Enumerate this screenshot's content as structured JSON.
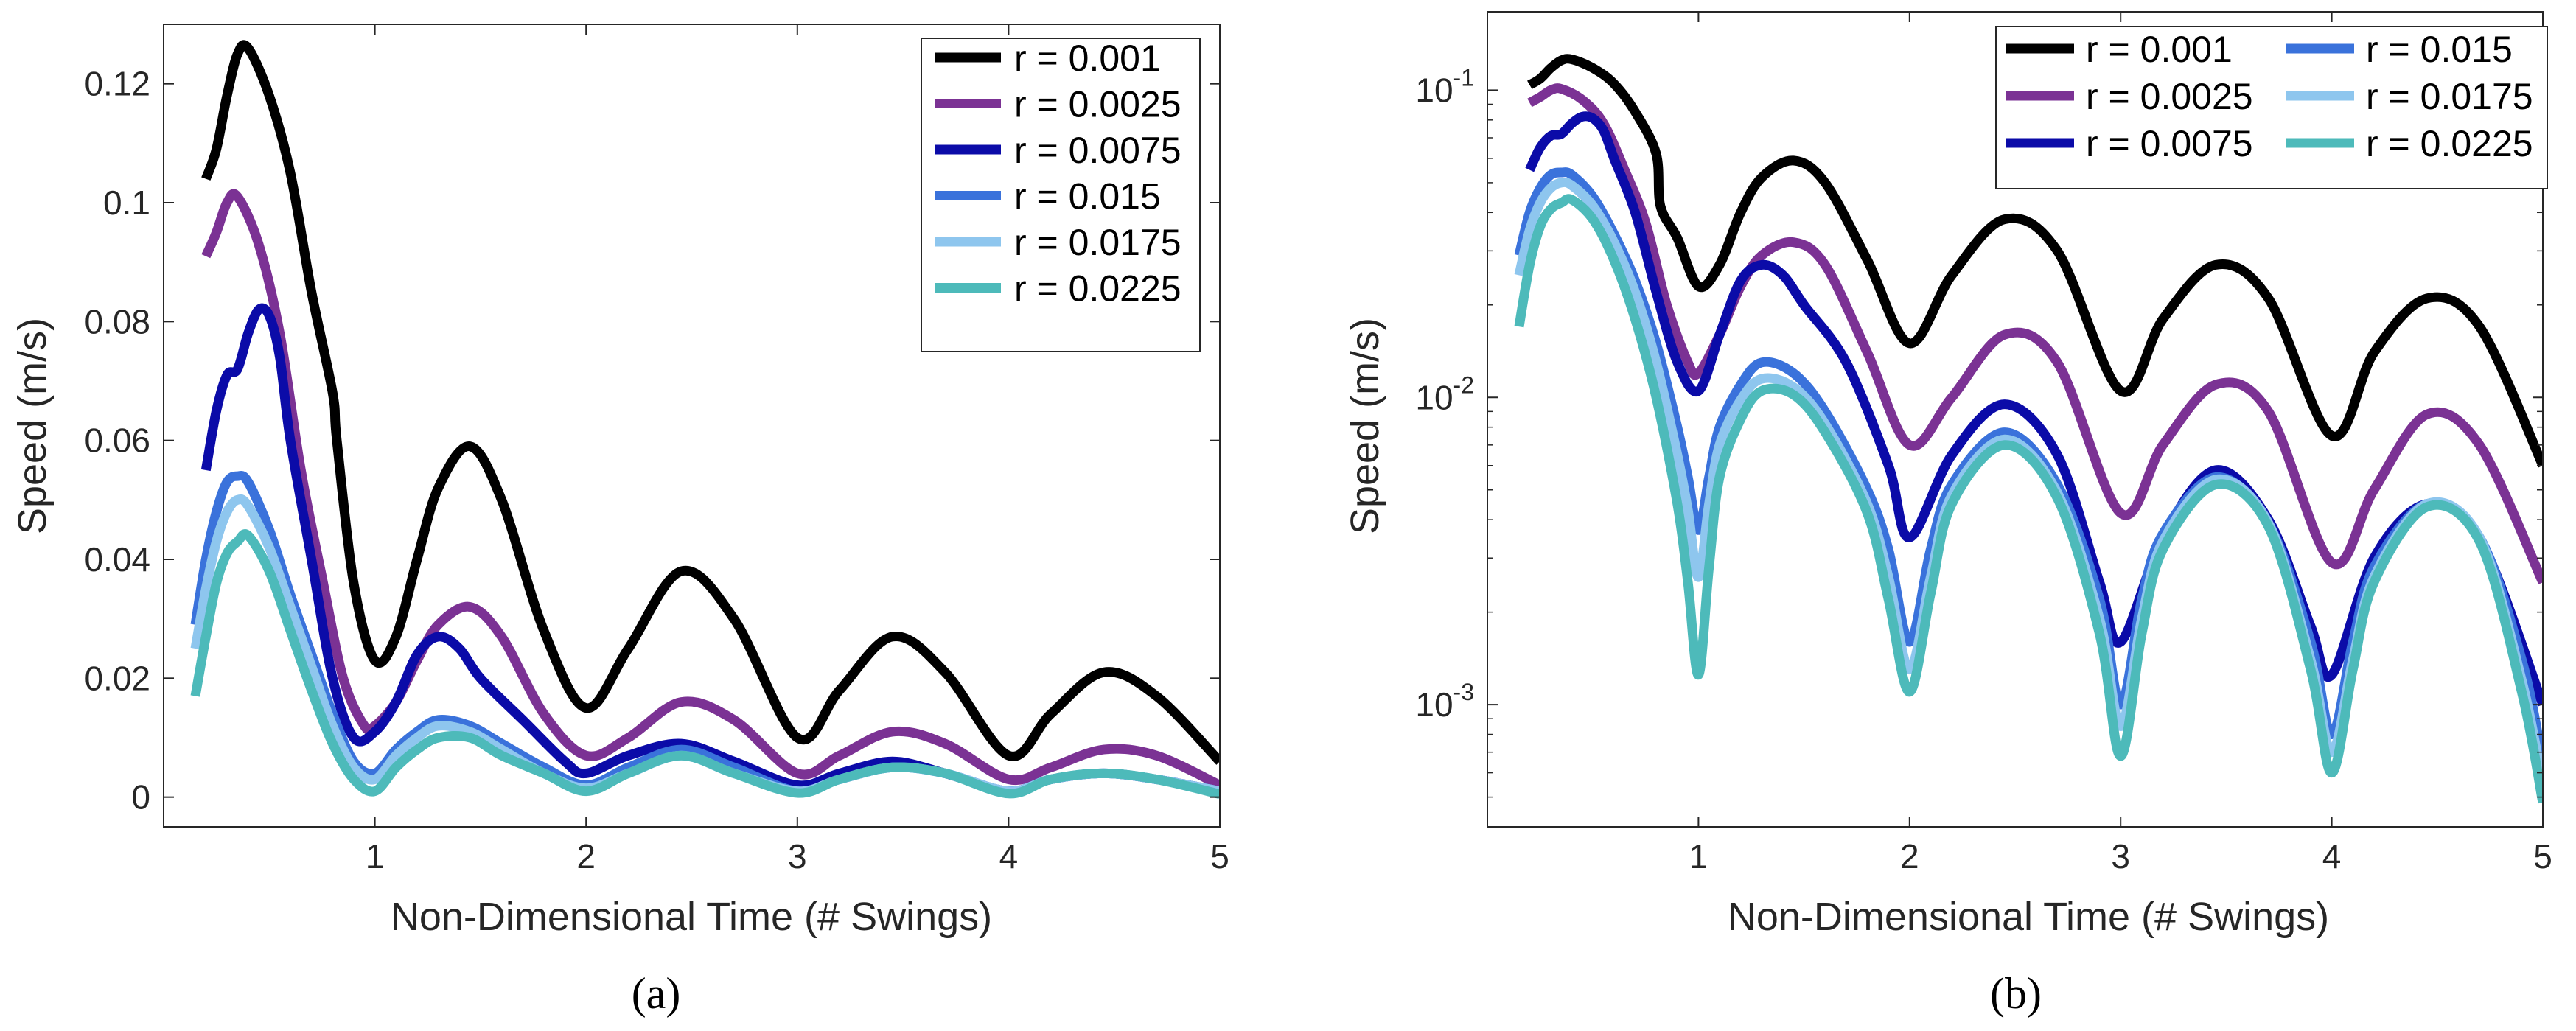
{
  "colors": {
    "r_0_001": "#000000",
    "r_0_0025": "#7B3294",
    "r_0_0075": "#0B0BA8",
    "r_0_015": "#3A72DB",
    "r_0_0175": "#8EC6EE",
    "r_0_0225": "#4DBABA"
  },
  "chart_data": [
    {
      "type": "line",
      "panel": "(a)",
      "caption": "(a)",
      "xlabel": "Non-Dimensional Time (# Swings)",
      "ylabel": "Speed (m/s)",
      "xlim": [
        0.0,
        5.0
      ],
      "ylim": [
        -0.005,
        0.13
      ],
      "yscale": "linear",
      "xticks": [
        1,
        2,
        3,
        4,
        5
      ],
      "xtick_labels": [
        "1",
        "2",
        "3",
        "4",
        "5"
      ],
      "yticks": [
        0,
        0.02,
        0.04,
        0.06,
        0.08,
        0.1,
        0.12
      ],
      "ytick_labels": [
        "0",
        "0.02",
        "0.04",
        "0.06",
        "0.08",
        "0.1",
        "0.12"
      ],
      "legend_position": "top-right",
      "legend_columns": 1,
      "series": [
        {
          "name": "r = 0.001",
          "color_key": "r_0_001",
          "x": [
            0.2,
            0.25,
            0.3,
            0.35,
            0.4,
            0.5,
            0.6,
            0.7,
            0.8,
            0.82,
            0.9,
            1.0,
            1.1,
            1.2,
            1.3,
            1.45,
            1.6,
            1.8,
            2.0,
            2.2,
            2.45,
            2.7,
            3.0,
            3.2,
            3.45,
            3.7,
            4.0,
            4.2,
            4.45,
            4.7,
            5.0
          ],
          "y": [
            0.104,
            0.109,
            0.118,
            0.125,
            0.126,
            0.118,
            0.105,
            0.085,
            0.068,
            0.06,
            0.036,
            0.023,
            0.027,
            0.04,
            0.052,
            0.059,
            0.05,
            0.028,
            0.015,
            0.025,
            0.038,
            0.03,
            0.01,
            0.018,
            0.027,
            0.021,
            0.007,
            0.014,
            0.021,
            0.017,
            0.006
          ]
        },
        {
          "name": "r = 0.0025",
          "color_key": "r_0_0025",
          "x": [
            0.2,
            0.25,
            0.3,
            0.35,
            0.45,
            0.55,
            0.65,
            0.75,
            0.85,
            0.95,
            1.0,
            1.1,
            1.2,
            1.3,
            1.45,
            1.6,
            1.8,
            2.0,
            2.2,
            2.45,
            2.7,
            3.0,
            3.2,
            3.45,
            3.7,
            4.0,
            4.2,
            4.45,
            4.7,
            5.0
          ],
          "y": [
            0.091,
            0.095,
            0.1,
            0.101,
            0.093,
            0.078,
            0.055,
            0.037,
            0.02,
            0.012,
            0.012,
            0.016,
            0.023,
            0.029,
            0.032,
            0.027,
            0.014,
            0.007,
            0.01,
            0.016,
            0.013,
            0.004,
            0.007,
            0.011,
            0.009,
            0.003,
            0.005,
            0.008,
            0.007,
            0.002
          ]
        },
        {
          "name": "r = 0.0075",
          "color_key": "r_0_0075",
          "x": [
            0.2,
            0.25,
            0.3,
            0.35,
            0.4,
            0.45,
            0.5,
            0.55,
            0.6,
            0.7,
            0.8,
            0.9,
            1.0,
            1.1,
            1.2,
            1.3,
            1.4,
            1.5,
            1.7,
            1.9,
            2.0,
            2.2,
            2.45,
            2.7,
            3.0,
            3.2,
            3.45,
            3.7,
            4.0,
            4.2,
            4.45,
            4.7,
            5.0
          ],
          "y": [
            0.055,
            0.065,
            0.071,
            0.072,
            0.078,
            0.082,
            0.081,
            0.074,
            0.06,
            0.04,
            0.02,
            0.01,
            0.011,
            0.016,
            0.024,
            0.027,
            0.025,
            0.02,
            0.013,
            0.006,
            0.004,
            0.007,
            0.009,
            0.006,
            0.002,
            0.004,
            0.006,
            0.004,
            0.001,
            0.003,
            0.004,
            0.003,
            0.001
          ]
        },
        {
          "name": "r = 0.015",
          "color_key": "r_0_015",
          "x": [
            0.15,
            0.2,
            0.25,
            0.3,
            0.35,
            0.4,
            0.5,
            0.6,
            0.7,
            0.8,
            0.9,
            1.0,
            1.1,
            1.2,
            1.3,
            1.45,
            1.6,
            1.8,
            2.0,
            2.2,
            2.45,
            2.7,
            3.0,
            3.2,
            3.45,
            3.7,
            4.0,
            4.2,
            4.45,
            4.7,
            5.0
          ],
          "y": [
            0.029,
            0.04,
            0.048,
            0.053,
            0.054,
            0.053,
            0.045,
            0.034,
            0.024,
            0.014,
            0.006,
            0.004,
            0.008,
            0.011,
            0.013,
            0.012,
            0.009,
            0.005,
            0.002,
            0.005,
            0.008,
            0.005,
            0.001,
            0.003,
            0.005,
            0.004,
            0.001,
            0.003,
            0.004,
            0.003,
            0.001
          ]
        },
        {
          "name": "r = 0.0175",
          "color_key": "r_0_0175",
          "x": [
            0.15,
            0.2,
            0.25,
            0.3,
            0.35,
            0.4,
            0.5,
            0.6,
            0.7,
            0.8,
            0.9,
            1.0,
            1.1,
            1.2,
            1.3,
            1.45,
            1.6,
            1.8,
            2.0,
            2.2,
            2.45,
            2.7,
            3.0,
            3.2,
            3.45,
            3.7,
            4.0,
            4.2,
            4.45,
            4.7,
            5.0
          ],
          "y": [
            0.025,
            0.035,
            0.043,
            0.048,
            0.05,
            0.049,
            0.042,
            0.032,
            0.022,
            0.012,
            0.005,
            0.003,
            0.007,
            0.01,
            0.012,
            0.011,
            0.008,
            0.004,
            0.0015,
            0.004,
            0.007,
            0.004,
            0.001,
            0.003,
            0.005,
            0.004,
            0.001,
            0.003,
            0.004,
            0.003,
            0.001
          ]
        },
        {
          "name": "r = 0.0225",
          "color_key": "r_0_0225",
          "x": [
            0.15,
            0.2,
            0.25,
            0.3,
            0.35,
            0.4,
            0.5,
            0.6,
            0.7,
            0.8,
            0.9,
            1.0,
            1.1,
            1.2,
            1.3,
            1.45,
            1.6,
            1.8,
            2.0,
            2.2,
            2.45,
            2.7,
            3.0,
            3.2,
            3.45,
            3.7,
            4.0,
            4.2,
            4.45,
            4.7,
            5.0
          ],
          "y": [
            0.017,
            0.027,
            0.036,
            0.041,
            0.043,
            0.044,
            0.038,
            0.028,
            0.018,
            0.009,
            0.003,
            0.001,
            0.005,
            0.008,
            0.01,
            0.01,
            0.007,
            0.004,
            0.001,
            0.004,
            0.007,
            0.004,
            0.0007,
            0.003,
            0.005,
            0.004,
            0.0006,
            0.003,
            0.004,
            0.003,
            0.0005
          ]
        }
      ]
    },
    {
      "type": "line",
      "panel": "(b)",
      "caption": "(b)",
      "xlabel": "Non-Dimensional Time (# Swings)",
      "ylabel": "Speed (m/s)",
      "xlim": [
        0.0,
        5.0
      ],
      "ylim": [
        0.0004,
        0.18
      ],
      "yscale": "log",
      "xticks": [
        1,
        2,
        3,
        4,
        5
      ],
      "xtick_labels": [
        "1",
        "2",
        "3",
        "4",
        "5"
      ],
      "yticks": [
        0.001,
        0.01,
        0.1
      ],
      "ytick_bases": [
        "10",
        "10",
        "10"
      ],
      "ytick_exponents": [
        "-3",
        "-2",
        "-1"
      ],
      "legend_position": "top-right",
      "legend_columns": 2,
      "series": [
        {
          "name": "r = 0.001",
          "color_key": "r_0_001",
          "x": [
            0.2,
            0.25,
            0.3,
            0.35,
            0.4,
            0.5,
            0.6,
            0.7,
            0.8,
            0.82,
            0.9,
            1.0,
            1.1,
            1.2,
            1.3,
            1.45,
            1.6,
            1.8,
            2.0,
            2.2,
            2.45,
            2.7,
            3.0,
            3.2,
            3.45,
            3.7,
            4.0,
            4.2,
            4.45,
            4.7,
            5.0
          ],
          "y": [
            0.104,
            0.109,
            0.118,
            0.125,
            0.126,
            0.118,
            0.105,
            0.085,
            0.062,
            0.042,
            0.033,
            0.023,
            0.027,
            0.04,
            0.052,
            0.059,
            0.05,
            0.028,
            0.015,
            0.025,
            0.038,
            0.03,
            0.0105,
            0.018,
            0.027,
            0.021,
            0.0075,
            0.014,
            0.021,
            0.017,
            0.006
          ]
        },
        {
          "name": "r = 0.0025",
          "color_key": "r_0_0025",
          "x": [
            0.2,
            0.25,
            0.3,
            0.35,
            0.45,
            0.55,
            0.65,
            0.75,
            0.85,
            0.95,
            1.0,
            1.1,
            1.2,
            1.3,
            1.45,
            1.6,
            1.8,
            2.0,
            2.2,
            2.45,
            2.7,
            3.0,
            3.2,
            3.45,
            3.7,
            4.0,
            4.2,
            4.45,
            4.7,
            5.0
          ],
          "y": [
            0.091,
            0.095,
            0.1,
            0.101,
            0.093,
            0.078,
            0.055,
            0.037,
            0.02,
            0.013,
            0.012,
            0.016,
            0.023,
            0.029,
            0.032,
            0.027,
            0.014,
            0.007,
            0.01,
            0.016,
            0.013,
            0.0042,
            0.007,
            0.011,
            0.009,
            0.0029,
            0.005,
            0.0088,
            0.007,
            0.0025
          ]
        },
        {
          "name": "r = 0.0075",
          "color_key": "r_0_0075",
          "x": [
            0.2,
            0.25,
            0.3,
            0.35,
            0.4,
            0.45,
            0.5,
            0.55,
            0.6,
            0.7,
            0.8,
            0.9,
            1.0,
            1.1,
            1.2,
            1.3,
            1.4,
            1.5,
            1.7,
            1.9,
            2.0,
            2.2,
            2.45,
            2.7,
            2.9,
            3.0,
            3.2,
            3.45,
            3.7,
            3.9,
            4.0,
            4.2,
            4.45,
            4.7,
            5.0
          ],
          "y": [
            0.055,
            0.065,
            0.071,
            0.072,
            0.078,
            0.082,
            0.081,
            0.074,
            0.06,
            0.04,
            0.022,
            0.013,
            0.0105,
            0.016,
            0.024,
            0.027,
            0.025,
            0.02,
            0.013,
            0.006,
            0.0035,
            0.0065,
            0.0095,
            0.0065,
            0.0025,
            0.0016,
            0.0035,
            0.0058,
            0.004,
            0.0018,
            0.00125,
            0.003,
            0.0045,
            0.0035,
            0.001
          ]
        },
        {
          "name": "r = 0.015",
          "color_key": "r_0_015",
          "x": [
            0.15,
            0.2,
            0.25,
            0.3,
            0.35,
            0.4,
            0.5,
            0.6,
            0.7,
            0.8,
            0.9,
            0.95,
            1.0,
            1.05,
            1.1,
            1.2,
            1.3,
            1.45,
            1.6,
            1.8,
            1.9,
            2.0,
            2.1,
            2.2,
            2.45,
            2.7,
            2.9,
            3.0,
            3.1,
            3.2,
            3.45,
            3.7,
            3.9,
            4.0,
            4.1,
            4.2,
            4.45,
            4.7,
            4.9,
            5.0
          ],
          "y": [
            0.029,
            0.04,
            0.048,
            0.053,
            0.054,
            0.053,
            0.045,
            0.034,
            0.024,
            0.015,
            0.008,
            0.0055,
            0.0037,
            0.0055,
            0.008,
            0.011,
            0.013,
            0.012,
            0.009,
            0.005,
            0.0032,
            0.0016,
            0.0032,
            0.0052,
            0.0077,
            0.0052,
            0.0022,
            0.001,
            0.0022,
            0.0036,
            0.0055,
            0.0039,
            0.0016,
            0.0008,
            0.0016,
            0.0028,
            0.0045,
            0.0035,
            0.0014,
            0.00065
          ]
        },
        {
          "name": "r = 0.0175",
          "color_key": "r_0_0175",
          "x": [
            0.15,
            0.2,
            0.25,
            0.3,
            0.35,
            0.4,
            0.5,
            0.6,
            0.7,
            0.8,
            0.9,
            0.95,
            1.0,
            1.05,
            1.1,
            1.2,
            1.3,
            1.45,
            1.6,
            1.8,
            1.9,
            2.0,
            2.1,
            2.2,
            2.45,
            2.7,
            2.9,
            3.0,
            3.1,
            3.2,
            3.45,
            3.7,
            3.9,
            4.0,
            4.1,
            4.2,
            4.45,
            4.7,
            4.9,
            5.0
          ],
          "y": [
            0.025,
            0.035,
            0.043,
            0.048,
            0.05,
            0.049,
            0.042,
            0.032,
            0.022,
            0.013,
            0.0065,
            0.0043,
            0.0026,
            0.0045,
            0.007,
            0.0098,
            0.0115,
            0.0108,
            0.0082,
            0.0045,
            0.0026,
            0.0013,
            0.0026,
            0.0048,
            0.0073,
            0.0049,
            0.0019,
            0.00085,
            0.0019,
            0.0034,
            0.0054,
            0.0039,
            0.0014,
            0.0007,
            0.0014,
            0.0026,
            0.0045,
            0.0035,
            0.0012,
            0.00055
          ]
        },
        {
          "name": "r = 0.0225",
          "color_key": "r_0_0225",
          "x": [
            0.15,
            0.2,
            0.25,
            0.3,
            0.35,
            0.4,
            0.5,
            0.6,
            0.7,
            0.8,
            0.9,
            0.95,
            1.0,
            1.05,
            1.1,
            1.2,
            1.3,
            1.45,
            1.6,
            1.8,
            1.9,
            2.0,
            2.1,
            2.2,
            2.45,
            2.7,
            2.9,
            3.0,
            3.1,
            3.2,
            3.45,
            3.7,
            3.9,
            4.0,
            4.1,
            4.2,
            4.45,
            4.7,
            4.9,
            5.0
          ],
          "y": [
            0.017,
            0.027,
            0.036,
            0.041,
            0.043,
            0.044,
            0.038,
            0.028,
            0.018,
            0.01,
            0.0045,
            0.0025,
            0.00125,
            0.0028,
            0.0055,
            0.0085,
            0.0105,
            0.0102,
            0.0077,
            0.0042,
            0.0022,
            0.0011,
            0.0023,
            0.0045,
            0.007,
            0.0047,
            0.0017,
            0.00068,
            0.0017,
            0.0032,
            0.0052,
            0.0038,
            0.0013,
            0.0006,
            0.0013,
            0.0025,
            0.0044,
            0.0034,
            0.0011,
            0.00048
          ]
        }
      ]
    }
  ]
}
